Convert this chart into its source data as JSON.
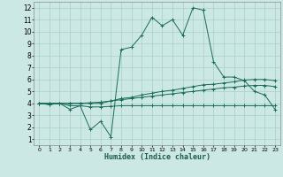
{
  "xlabel": "Humidex (Indice chaleur)",
  "xlim": [
    -0.5,
    23.5
  ],
  "ylim": [
    0.5,
    12.5
  ],
  "xticks": [
    0,
    1,
    2,
    3,
    4,
    5,
    6,
    7,
    8,
    9,
    10,
    11,
    12,
    13,
    14,
    15,
    16,
    17,
    18,
    19,
    20,
    21,
    22,
    23
  ],
  "yticks": [
    1,
    2,
    3,
    4,
    5,
    6,
    7,
    8,
    9,
    10,
    11,
    12
  ],
  "bg_color": "#cce8e4",
  "grid_color": "#aacfca",
  "line_color": "#1a6b5a",
  "lines": [
    {
      "x": [
        0,
        1,
        2,
        3,
        4,
        5,
        6,
        7,
        8,
        9,
        10,
        11,
        12,
        13,
        14,
        15,
        16,
        17,
        18,
        19,
        20,
        21,
        22,
        23
      ],
      "y": [
        4.0,
        3.9,
        4.0,
        3.5,
        3.8,
        1.8,
        2.5,
        1.2,
        8.5,
        8.7,
        9.7,
        11.2,
        10.5,
        11.0,
        9.7,
        12.0,
        11.8,
        7.5,
        6.2,
        6.2,
        5.9,
        5.0,
        4.7,
        3.5
      ]
    },
    {
      "x": [
        0,
        1,
        2,
        3,
        4,
        5,
        6,
        7,
        8,
        9,
        10,
        11,
        12,
        13,
        14,
        15,
        16,
        17,
        18,
        19,
        20,
        21,
        22,
        23
      ],
      "y": [
        4.0,
        4.0,
        4.0,
        4.0,
        4.0,
        4.0,
        4.0,
        4.2,
        4.4,
        4.5,
        4.7,
        4.85,
        5.0,
        5.1,
        5.25,
        5.4,
        5.55,
        5.6,
        5.7,
        5.8,
        5.95,
        6.0,
        6.0,
        5.9
      ]
    },
    {
      "x": [
        0,
        1,
        2,
        3,
        4,
        5,
        6,
        7,
        8,
        9,
        10,
        11,
        12,
        13,
        14,
        15,
        16,
        17,
        18,
        19,
        20,
        21,
        22,
        23
      ],
      "y": [
        4.0,
        3.9,
        4.0,
        3.8,
        3.8,
        3.7,
        3.7,
        3.75,
        3.8,
        3.8,
        3.8,
        3.8,
        3.8,
        3.8,
        3.8,
        3.8,
        3.8,
        3.8,
        3.8,
        3.8,
        3.8,
        3.8,
        3.8,
        3.8
      ]
    },
    {
      "x": [
        0,
        1,
        2,
        3,
        4,
        5,
        6,
        7,
        8,
        9,
        10,
        11,
        12,
        13,
        14,
        15,
        16,
        17,
        18,
        19,
        20,
        21,
        22,
        23
      ],
      "y": [
        4.0,
        4.0,
        4.0,
        4.0,
        4.0,
        4.05,
        4.1,
        4.2,
        4.3,
        4.4,
        4.5,
        4.6,
        4.7,
        4.8,
        4.9,
        5.0,
        5.1,
        5.2,
        5.3,
        5.35,
        5.45,
        5.5,
        5.5,
        5.4
      ]
    }
  ]
}
